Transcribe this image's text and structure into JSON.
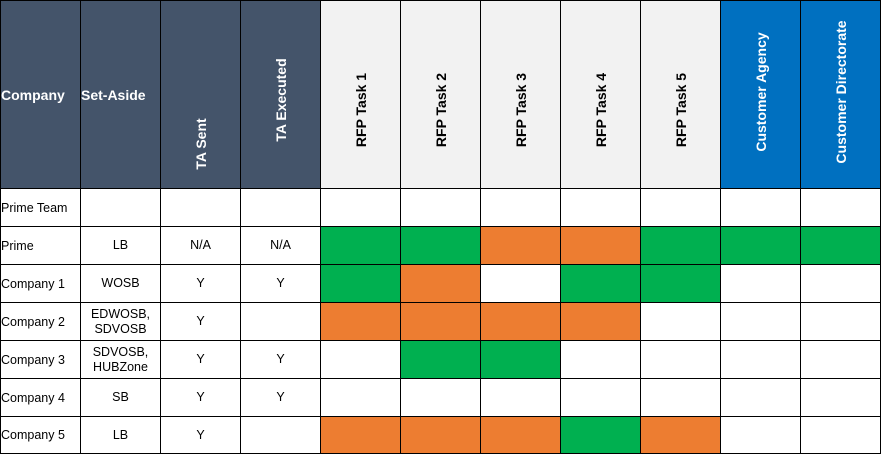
{
  "colors": {
    "header_dark": "#44546a",
    "header_light": "#f2f2f2",
    "header_blue": "#0070c0",
    "status_green": "#00b050",
    "status_orange": "#ed7d31",
    "status_blank": "#ffffff"
  },
  "headers": {
    "company": "Company",
    "set_aside": "Set-Aside",
    "ta_sent": "TA Sent",
    "ta_executed": "TA Executed",
    "rfp_task_1": "RFP Task 1",
    "rfp_task_2": "RFP Task 2",
    "rfp_task_3": "RFP Task 3",
    "rfp_task_4": "RFP Task 4",
    "rfp_task_5": "RFP Task 5",
    "customer_agency": "Customer Agency",
    "customer_directorate": "Customer Directorate"
  },
  "rows": [
    {
      "company": "Prime Team",
      "set_aside": "",
      "ta_sent": "",
      "ta_executed": "",
      "status": [
        "blank",
        "blank",
        "blank",
        "blank",
        "blank",
        "blank",
        "blank"
      ]
    },
    {
      "company": "Prime",
      "set_aside": "LB",
      "ta_sent": "N/A",
      "ta_executed": "N/A",
      "status": [
        "green",
        "green",
        "orange",
        "orange",
        "green",
        "green",
        "green"
      ]
    },
    {
      "company": "Company 1",
      "set_aside": "WOSB",
      "ta_sent": "Y",
      "ta_executed": "Y",
      "status": [
        "green",
        "orange",
        "blank",
        "green",
        "green",
        "blank",
        "blank"
      ]
    },
    {
      "company": "Company 2",
      "set_aside": "EDWOSB, SDVOSB",
      "ta_sent": "Y",
      "ta_executed": "",
      "status": [
        "orange",
        "orange",
        "orange",
        "orange",
        "blank",
        "blank",
        "blank"
      ]
    },
    {
      "company": "Company 3",
      "set_aside": "SDVOSB, HUBZone",
      "ta_sent": "Y",
      "ta_executed": "Y",
      "status": [
        "blank",
        "green",
        "green",
        "blank",
        "blank",
        "blank",
        "blank"
      ]
    },
    {
      "company": "Company 4",
      "set_aside": "SB",
      "ta_sent": "Y",
      "ta_executed": "Y",
      "status": [
        "blank",
        "blank",
        "blank",
        "blank",
        "blank",
        "blank",
        "blank"
      ]
    },
    {
      "company": "Company 5",
      "set_aside": "LB",
      "ta_sent": "Y",
      "ta_executed": "",
      "status": [
        "orange",
        "orange",
        "orange",
        "green",
        "orange",
        "blank",
        "blank"
      ]
    }
  ]
}
